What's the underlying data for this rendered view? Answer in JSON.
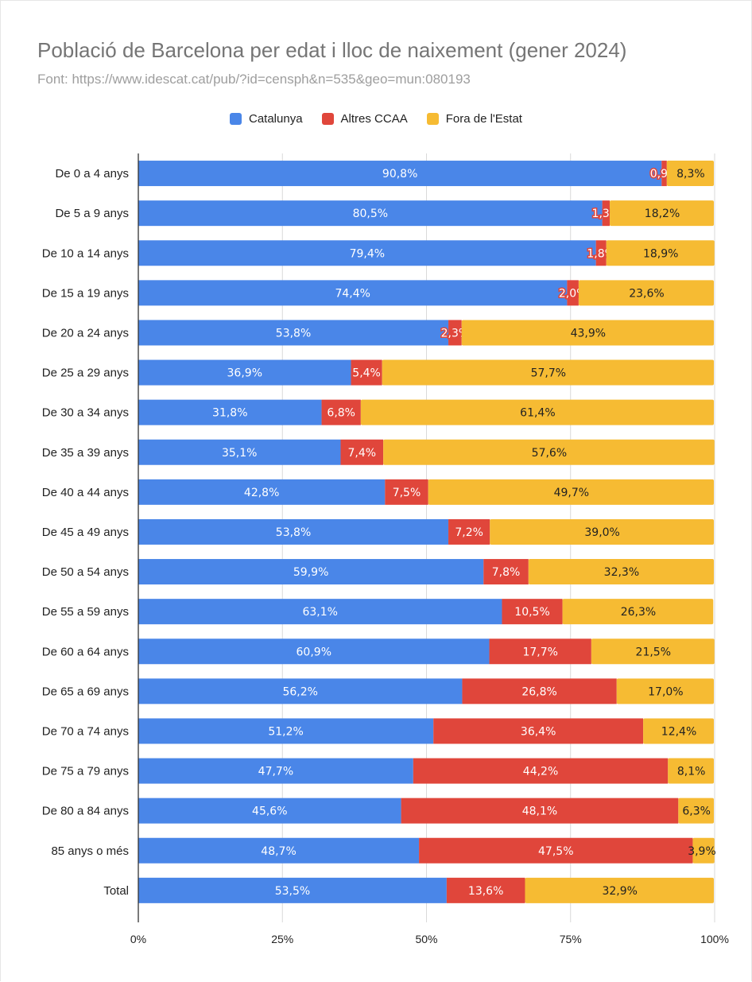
{
  "title": "Població de Barcelona per edat i lloc de naixement (gener 2024)",
  "subtitle": "Font: https://www.idescat.cat/pub/?id=censph&n=535&geo=mun:080193",
  "chart_data": {
    "type": "bar",
    "orientation": "horizontal",
    "stacked": "percent",
    "title": "Població de Barcelona per edat i lloc de naixement (gener 2024)",
    "subtitle": "Font: https://www.idescat.cat/pub/?id=censph&n=535&geo=mun:080193",
    "legend_position": "top",
    "grid": true,
    "xlim": [
      0,
      100
    ],
    "x_ticks": [
      "0%",
      "25%",
      "50%",
      "75%",
      "100%"
    ],
    "categories": [
      "De 0 a 4 anys",
      "De 5 a 9 anys",
      "De 10 a 14 anys",
      "De 15 a 19 anys",
      "De 20 a 24 anys",
      "De 25 a 29 anys",
      "De 30 a 34 anys",
      "De 35 a 39 anys",
      "De 40 a 44 anys",
      "De 45 a 49 anys",
      "De 50 a 54 anys",
      "De 55 a 59 anys",
      "De 60 a 64 anys",
      "De 65 a 69 anys",
      "De 70 a 74 anys",
      "De 75 a 79 anys",
      "De 80 a 84 anys",
      "85 anys o més",
      "Total"
    ],
    "series": [
      {
        "name": "Catalunya",
        "color": "#4a86e8",
        "values": [
          90.8,
          80.5,
          79.4,
          74.4,
          53.8,
          36.9,
          31.8,
          35.1,
          42.8,
          53.8,
          59.9,
          63.1,
          60.9,
          56.2,
          51.2,
          47.7,
          45.6,
          48.7,
          53.5
        ],
        "labels": [
          "90,8%",
          "80,5%",
          "79,4%",
          "74,4%",
          "53,8%",
          "36,9%",
          "31,8%",
          "35,1%",
          "42,8%",
          "53,8%",
          "59,9%",
          "63,1%",
          "60,9%",
          "56,2%",
          "51,2%",
          "47,7%",
          "45,6%",
          "48,7%",
          "53,5%"
        ]
      },
      {
        "name": "Altres CCAA",
        "color": "#e0463b",
        "values": [
          0.9,
          1.3,
          1.8,
          2.0,
          2.3,
          5.4,
          6.8,
          7.4,
          7.5,
          7.2,
          7.8,
          10.5,
          17.7,
          26.8,
          36.4,
          44.2,
          48.1,
          47.5,
          13.6
        ],
        "labels": [
          "0,9%",
          "1,3%",
          "1,8%",
          "2,0%",
          "2,3%",
          "5,4%",
          "6,8%",
          "7,4%",
          "7,5%",
          "7,2%",
          "7,8%",
          "10,5%",
          "17,7%",
          "26,8%",
          "36,4%",
          "44,2%",
          "48,1%",
          "47,5%",
          "13,6%"
        ]
      },
      {
        "name": "Fora de l'Estat",
        "color": "#f6bb33",
        "values": [
          8.3,
          18.2,
          18.9,
          23.6,
          43.9,
          57.7,
          61.4,
          57.6,
          49.7,
          39.0,
          32.3,
          26.3,
          21.5,
          17.0,
          12.4,
          8.1,
          6.3,
          3.9,
          32.9
        ],
        "labels": [
          "8,3%",
          "18,2%",
          "18,9%",
          "23,6%",
          "43,9%",
          "57,7%",
          "61,4%",
          "57,6%",
          "49,7%",
          "39,0%",
          "32,3%",
          "26,3%",
          "21,5%",
          "17,0%",
          "12,4%",
          "8,1%",
          "6,3%",
          "3,9%",
          "32,9%"
        ]
      }
    ]
  }
}
